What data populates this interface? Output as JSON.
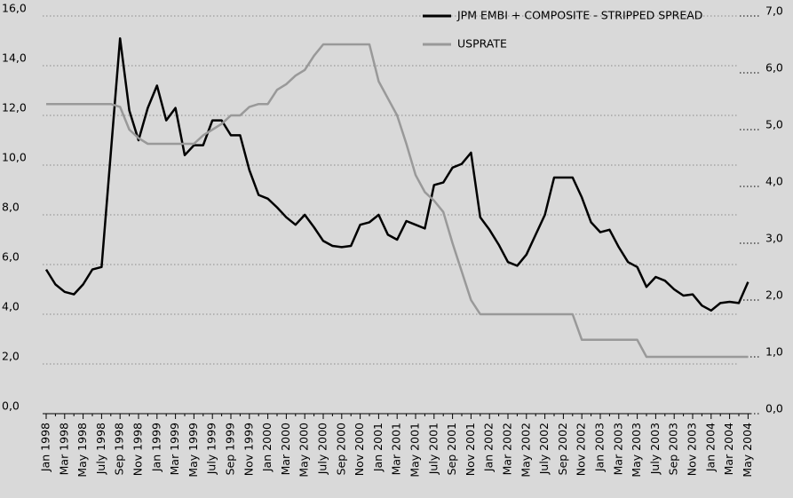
{
  "chart_data": {
    "type": "line",
    "categories": [
      "Jan 1998",
      null,
      "Mar 1998",
      null,
      "May 1998",
      null,
      "July 1998",
      null,
      "Sep 1998",
      null,
      "Nov 1998",
      null,
      "Jan 1999",
      null,
      "Mar 1999",
      null,
      "May 1999",
      null,
      "July 1999",
      null,
      "Sep 1999",
      null,
      "Nov 1999",
      null,
      "Jan 2000",
      null,
      "Mar 2000",
      null,
      "May 2000",
      null,
      "July 2000",
      null,
      "Sep 2000",
      null,
      "Nov 2000",
      null,
      "Jan 2001",
      null,
      "Mar 2001",
      null,
      "May 2001",
      null,
      "July 2001",
      null,
      "Sep 2001",
      null,
      "Nov 2001",
      null,
      "Jan 2002",
      null,
      "Mar 2002",
      null,
      "May 2002",
      null,
      "July 2002",
      null,
      "Sep 2002",
      null,
      "Nov 2002",
      null,
      "Jan 2003",
      null,
      "Mar 2003",
      null,
      "May 2003",
      null,
      "July 2003",
      null,
      "Sep 2003",
      null,
      "Nov 2003",
      null,
      "Jan 2004",
      null,
      "Mar 2004",
      null,
      "May 2004"
    ],
    "series": [
      {
        "name": "JPM EMBI + COMPOSITE - STRIPPED SPREAD",
        "color": "#000000",
        "axis": "y",
        "values": [
          5.8,
          5.2,
          4.9,
          4.8,
          5.2,
          5.8,
          5.9,
          10.5,
          15.1,
          12.2,
          11.0,
          12.3,
          13.2,
          11.8,
          12.3,
          10.4,
          10.8,
          10.8,
          11.8,
          11.8,
          11.2,
          11.2,
          9.8,
          8.8,
          8.65,
          8.3,
          7.9,
          7.6,
          8.0,
          7.5,
          6.95,
          6.75,
          6.7,
          6.75,
          7.6,
          7.7,
          8.0,
          7.2,
          7.0,
          7.75,
          7.6,
          7.45,
          9.2,
          9.3,
          9.9,
          10.05,
          10.5,
          7.9,
          7.4,
          6.8,
          6.1,
          5.95,
          6.4,
          7.2,
          8.0,
          9.5,
          9.5,
          9.5,
          8.7,
          7.7,
          7.3,
          7.4,
          6.7,
          6.1,
          5.9,
          5.1,
          5.5,
          5.35,
          5.0,
          4.75,
          4.8,
          4.35,
          4.15,
          4.45,
          4.5,
          4.45,
          5.3
        ]
      },
      {
        "name": "USPRATE",
        "color": "#999999",
        "axis": "y2",
        "values": [
          5.45,
          5.45,
          5.45,
          5.45,
          5.45,
          5.45,
          5.45,
          5.45,
          5.4,
          5.0,
          4.85,
          4.75,
          4.75,
          4.75,
          4.75,
          4.75,
          4.75,
          4.9,
          5.0,
          5.1,
          5.25,
          5.25,
          5.4,
          5.45,
          5.45,
          5.7,
          5.8,
          5.95,
          6.05,
          6.3,
          6.5,
          6.5,
          6.5,
          6.5,
          6.5,
          6.5,
          5.85,
          5.55,
          5.25,
          4.75,
          4.2,
          3.9,
          3.75,
          3.55,
          3.0,
          2.5,
          2.0,
          1.75,
          1.75,
          1.75,
          1.75,
          1.75,
          1.75,
          1.75,
          1.75,
          1.75,
          1.75,
          1.75,
          1.3,
          1.3,
          1.3,
          1.3,
          1.3,
          1.3,
          1.3,
          1.0,
          1.0,
          1.0,
          1.0,
          1.0,
          1.0,
          1.0,
          1.0,
          1.0,
          1.0,
          1.0,
          1.0
        ]
      }
    ],
    "ylim": [
      0,
      16
    ],
    "yticks": [
      {
        "value": 0,
        "label": "0,0"
      },
      {
        "value": 2,
        "label": "2,0"
      },
      {
        "value": 4,
        "label": "4,0"
      },
      {
        "value": 6,
        "label": "6,0"
      },
      {
        "value": 8,
        "label": "8,0"
      },
      {
        "value": 10,
        "label": "10,0"
      },
      {
        "value": 12,
        "label": "12,0"
      },
      {
        "value": 14,
        "label": "14,0"
      },
      {
        "value": 16,
        "label": "16,0"
      }
    ],
    "y2lim": [
      0,
      7
    ],
    "y2ticks": [
      {
        "value": 0,
        "label": "0,0"
      },
      {
        "value": 1,
        "label": "1,0"
      },
      {
        "value": 2,
        "label": "2,0"
      },
      {
        "value": 3,
        "label": "3,0"
      },
      {
        "value": 4,
        "label": "4,0"
      },
      {
        "value": 5,
        "label": "5,0"
      },
      {
        "value": 6,
        "label": "6,0"
      },
      {
        "value": 7,
        "label": "7,0"
      }
    ],
    "grid": true,
    "legend": "upper right"
  }
}
